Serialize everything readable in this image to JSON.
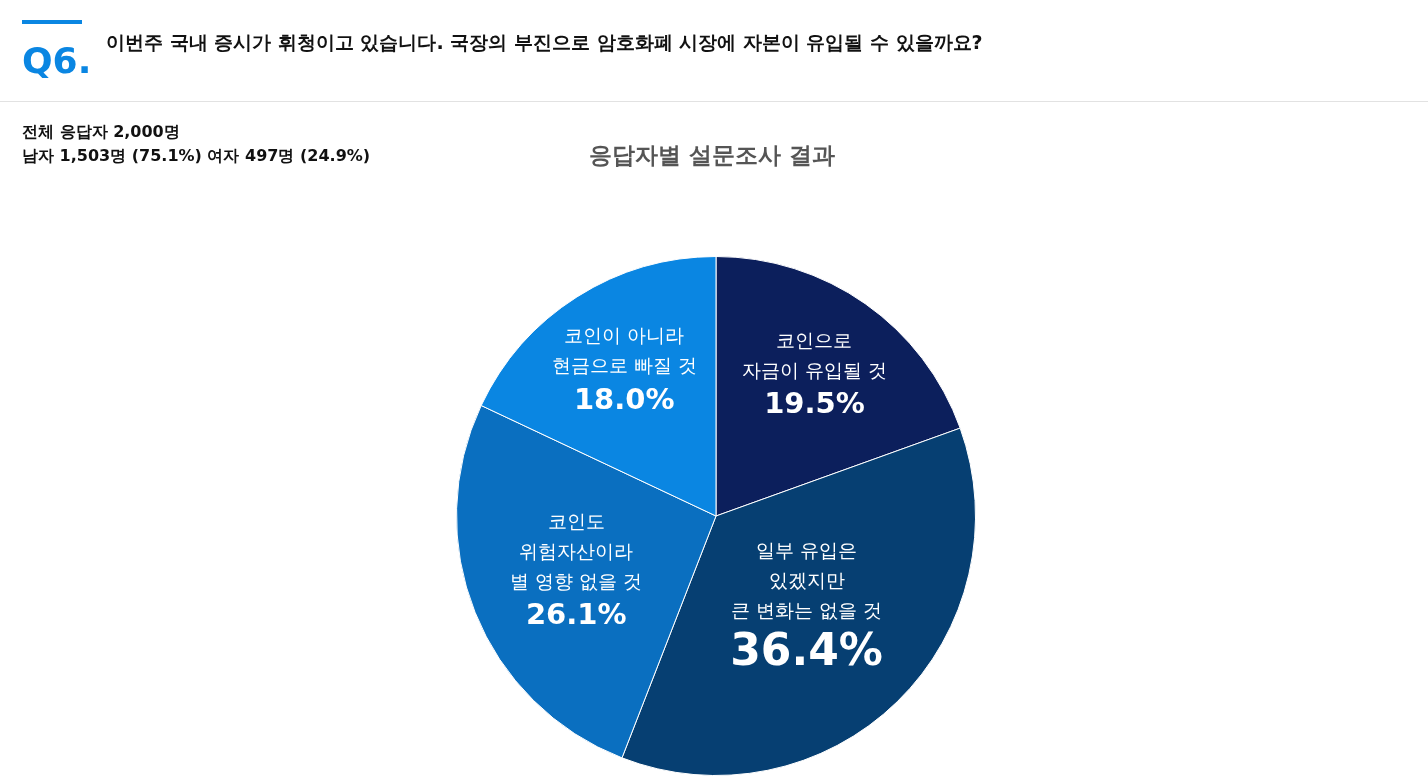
{
  "chart_data": {
    "type": "pie",
    "title": "응답자별 설문조사 결과",
    "annotations": [
      "Q6.",
      "이번주 국내 증시가 휘청이고 있습니다. 국장의 부진으로 암호화폐 시장에 자본이 유입될 수 있을까요?",
      "전체 응답자 2,000명",
      "남자 1,503명 (75.1%) 여자 497명 (24.9%)"
    ],
    "categories": [
      "코인으로\n자금이 유입될 것",
      "일부 유입은\n있겠지만\n큰 변화는 없을 것",
      "코인도\n위험자산이라\n별 영향 없을 것",
      "코인이 아니라\n현금으로 빠질 것"
    ],
    "values": [
      19.5,
      36.4,
      26.1,
      18.0
    ],
    "value_labels": [
      "19.5%",
      "36.4%",
      "26.1%",
      "18.0%"
    ],
    "colors": [
      "#0c1f5c",
      "#063f72",
      "#0a6fc0",
      "#0a86e2"
    ],
    "legend": false
  }
}
